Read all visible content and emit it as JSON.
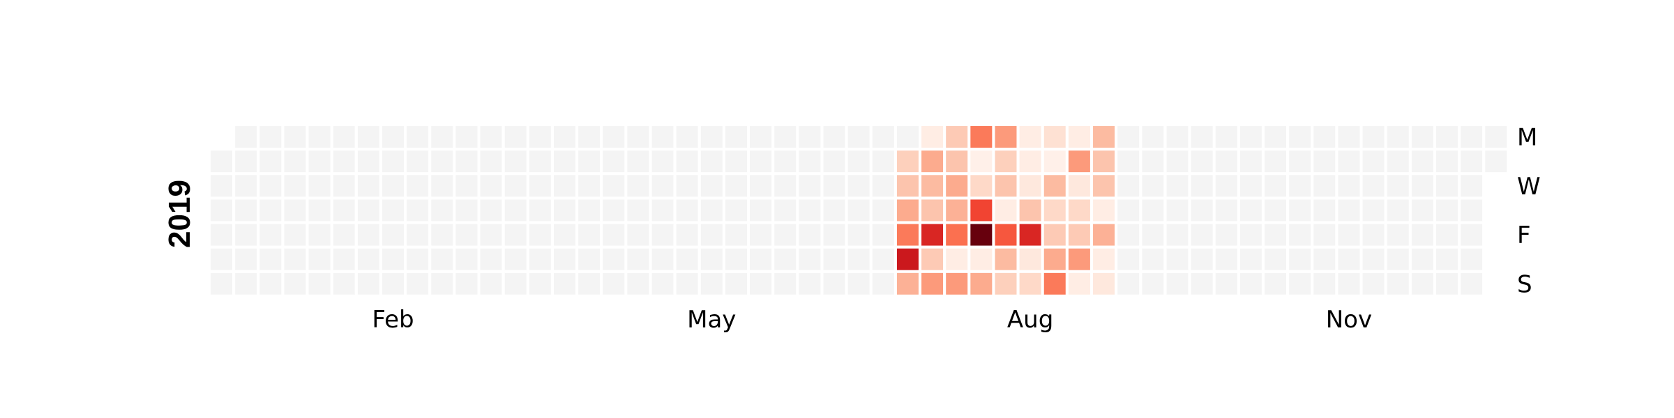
{
  "chart_data": {
    "type": "heatmap",
    "year_label": "2019",
    "month_labels": [
      {
        "label": "Feb",
        "week": 7
      },
      {
        "label": "May",
        "week": 20
      },
      {
        "label": "Aug",
        "week": 33
      },
      {
        "label": "Nov",
        "week": 46
      }
    ],
    "day_labels": [
      {
        "label": "M",
        "row": 0
      },
      {
        "label": "W",
        "row": 2
      },
      {
        "label": "F",
        "row": 4
      },
      {
        "label": "S",
        "row": 6
      }
    ],
    "weeks": 53,
    "first_weekday_row": 1,
    "days_in_year": 365,
    "empty_color": "#f4f4f4",
    "colormap": "Reds",
    "value_range": [
      0,
      1
    ],
    "active_weeks": [
      {
        "week": 28,
        "values": [
          null,
          0.18,
          0.22,
          0.3,
          0.45,
          0.75,
          0.28
        ]
      },
      {
        "week": 29,
        "values": [
          0.05,
          0.3,
          0.25,
          0.22,
          0.7,
          0.2,
          0.35
        ]
      },
      {
        "week": 30,
        "values": [
          0.2,
          0.22,
          0.3,
          0.28,
          0.48,
          0.05,
          0.35
        ]
      },
      {
        "week": 31,
        "values": [
          0.45,
          0.03,
          0.15,
          0.6,
          1.0,
          0.05,
          0.3
        ]
      },
      {
        "week": 32,
        "values": [
          0.35,
          0.18,
          0.22,
          0.05,
          0.55,
          0.25,
          0.18
        ]
      },
      {
        "week": 33,
        "values": [
          0.05,
          0.05,
          0.08,
          0.22,
          0.7,
          0.08,
          0.15
        ]
      },
      {
        "week": 34,
        "values": [
          0.12,
          0.03,
          0.25,
          0.15,
          0.2,
          0.3,
          0.45
        ]
      },
      {
        "week": 35,
        "values": [
          0.05,
          0.35,
          0.08,
          0.15,
          0.2,
          0.35,
          0.05
        ]
      },
      {
        "week": 36,
        "values": [
          0.25,
          0.22,
          0.22,
          0.05,
          0.28,
          0.05,
          0.08
        ]
      }
    ]
  }
}
